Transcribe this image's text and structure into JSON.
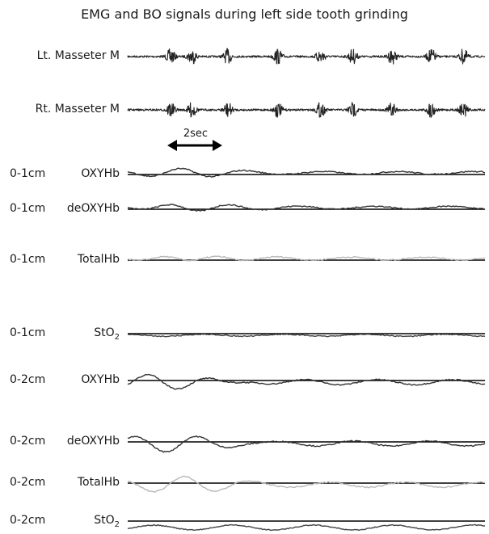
{
  "chart_data": {
    "type": "line",
    "title": "EMG and BO signals during left side tooth grinding",
    "scale_bar": "2sec",
    "series": [
      {
        "key": "lt_masseter",
        "depth": "",
        "name": "Lt. Masseter M",
        "sub": "",
        "kind": "emg",
        "color": "#222222"
      },
      {
        "key": "rt_masseter",
        "depth": "",
        "name": "Rt. Masseter M",
        "sub": "",
        "kind": "emg",
        "color": "#222222"
      },
      {
        "key": "oxyhb_1",
        "depth": "0-1cm",
        "name": "OXYHb",
        "sub": "",
        "kind": "hb",
        "color": "#333333"
      },
      {
        "key": "deoxyhb_1",
        "depth": "0-1cm",
        "name": "deOXYHb",
        "sub": "",
        "kind": "hb",
        "color": "#333333"
      },
      {
        "key": "totalhb_1",
        "depth": "0-1cm",
        "name": "TotalHb",
        "sub": "",
        "kind": "hb",
        "color": "#b8b8b8"
      },
      {
        "key": "sto2_1",
        "depth": "0-1cm",
        "name": "StO",
        "sub": "2",
        "kind": "sto2",
        "color": "#444444"
      },
      {
        "key": "oxyhb_2",
        "depth": "0-2cm",
        "name": "OXYHb",
        "sub": "",
        "kind": "hb",
        "color": "#333333"
      },
      {
        "key": "deoxyhb_2",
        "depth": "0-2cm",
        "name": "deOXYHb",
        "sub": "",
        "kind": "hb",
        "color": "#333333"
      },
      {
        "key": "totalhb_2",
        "depth": "0-2cm",
        "name": "TotalHb",
        "sub": "",
        "kind": "hb",
        "color": "#b8b8b8"
      },
      {
        "key": "sto2_2",
        "depth": "0-2cm",
        "name": "StO",
        "sub": "2",
        "kind": "sto2",
        "color": "#444444"
      }
    ],
    "baseline_color": "#000000",
    "grid": false
  }
}
